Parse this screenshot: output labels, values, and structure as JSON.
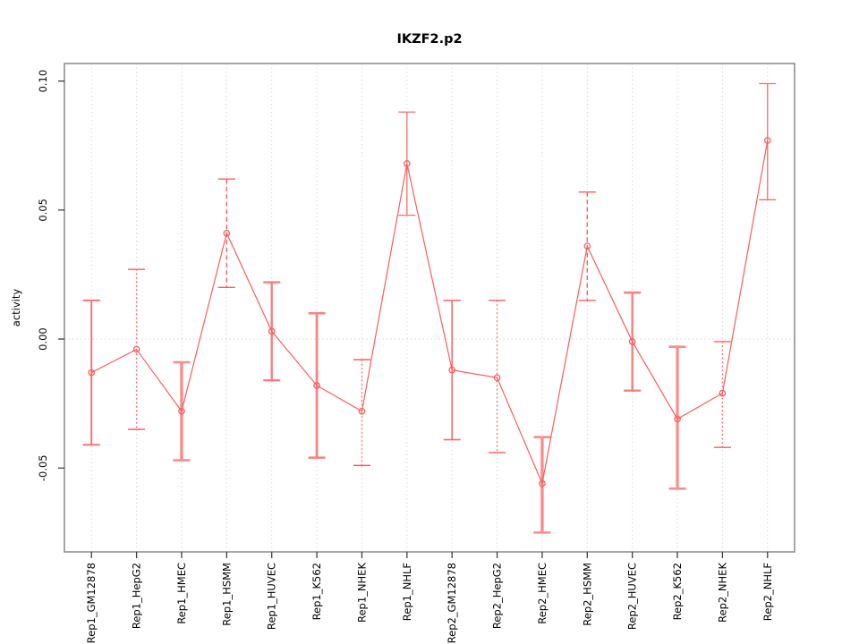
{
  "chart_data": {
    "type": "line",
    "title": "IKZF2.p2",
    "xlabel": "",
    "ylabel": "activity",
    "categories": [
      "Rep1_GM12878",
      "Rep1_HepG2",
      "Rep1_HMEC",
      "Rep1_HSMM",
      "Rep1_HUVEC",
      "Rep1_K562",
      "Rep1_NHEK",
      "Rep1_NHLF",
      "Rep2_GM12878",
      "Rep2_HepG2",
      "Rep2_HMEC",
      "Rep2_HSMM",
      "Rep2_HUVEC",
      "Rep2_K562",
      "Rep2_NHEK",
      "Rep2_NHLF"
    ],
    "series": [
      {
        "name": "activity",
        "values": [
          -0.013,
          -0.004,
          -0.028,
          0.041,
          0.003,
          -0.018,
          -0.028,
          0.068,
          -0.012,
          -0.015,
          -0.056,
          0.036,
          -0.001,
          -0.031,
          -0.021,
          0.077
        ],
        "error_low": [
          -0.041,
          -0.035,
          -0.047,
          0.02,
          -0.016,
          -0.046,
          -0.049,
          0.048,
          -0.039,
          -0.044,
          -0.075,
          0.015,
          -0.02,
          -0.058,
          -0.042,
          0.054
        ],
        "error_high": [
          0.015,
          0.027,
          -0.009,
          0.062,
          0.022,
          0.01,
          -0.008,
          0.088,
          0.015,
          0.015,
          -0.038,
          0.057,
          0.018,
          -0.003,
          -0.001,
          0.099
        ]
      }
    ],
    "ylim": [
      -0.0825,
      0.1068
    ],
    "yticks": [
      {
        "value": -0.05,
        "label": "-0.05"
      },
      {
        "value": 0,
        "label": "0.00"
      },
      {
        "value": 0.05,
        "label": "0.05"
      },
      {
        "value": 0.1,
        "label": "0.10"
      }
    ],
    "grid": {
      "vertical_dotted_per_category": true,
      "horizontal_dotted_at_zero": true
    },
    "legend_position": "none",
    "series_color": "#f85e5e",
    "grid_color": "#d9d9d9",
    "box_color": "#8f8f8f",
    "tick_color": "#3d3d3d",
    "error_bar_styles": [
      {
        "lty": "solid",
        "lwd": 1.9,
        "color": "#f86b6b"
      },
      {
        "lty": "dotted",
        "lwd": 1.4,
        "color": "#f85e5e"
      },
      {
        "lty": "solid",
        "lwd": 3.4,
        "color": "#f98c8c"
      },
      {
        "lty": "dashed",
        "lwd": 1.4,
        "color": "#f85e5e"
      },
      {
        "lty": "solid",
        "lwd": 2.4,
        "color": "#f97e7e"
      },
      {
        "lty": "solid",
        "lwd": 2.8,
        "color": "#f98484"
      },
      {
        "lty": "dotted",
        "lwd": 1.4,
        "color": "#f85e5e"
      },
      {
        "lty": "solid",
        "lwd": 1.3,
        "color": "#f86b6b"
      },
      {
        "lty": "solid",
        "lwd": 1.6,
        "color": "#f86b6b"
      },
      {
        "lty": "dotted",
        "lwd": 1.4,
        "color": "#f85e5e"
      },
      {
        "lty": "solid",
        "lwd": 3.4,
        "color": "#f98c8c"
      },
      {
        "lty": "dashed",
        "lwd": 1.4,
        "color": "#f85e5e"
      },
      {
        "lty": "solid",
        "lwd": 2.4,
        "color": "#f97e7e"
      },
      {
        "lty": "solid",
        "lwd": 3.2,
        "color": "#f98c8c"
      },
      {
        "lty": "dotted",
        "lwd": 1.4,
        "color": "#f85e5e"
      },
      {
        "lty": "solid",
        "lwd": 1.3,
        "color": "#f86b6b"
      }
    ]
  }
}
